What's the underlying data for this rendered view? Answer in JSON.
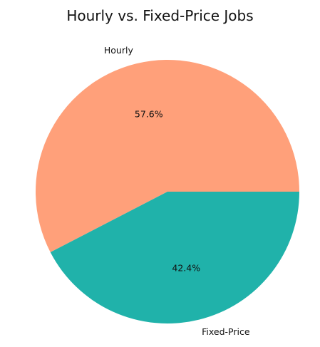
{
  "chart_data": {
    "type": "pie",
    "title": "Hourly vs. Fixed-Price Jobs",
    "categories": [
      "Hourly",
      "Fixed-Price"
    ],
    "values": [
      57.6,
      42.4
    ],
    "value_labels": [
      "57.6%",
      "42.4%"
    ],
    "colors": [
      "#FFA07A",
      "#20B2AA"
    ],
    "start_angle_deg": 0,
    "direction": "counterclockwise",
    "legend": "none"
  }
}
